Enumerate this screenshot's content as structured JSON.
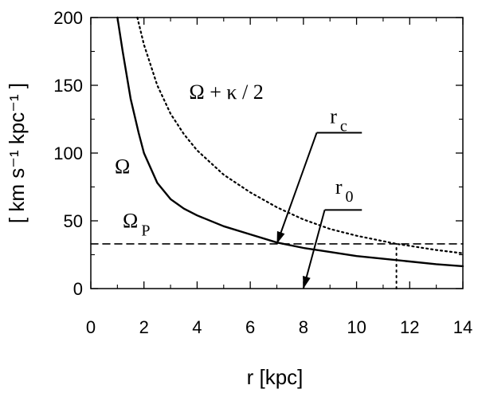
{
  "chart_data": {
    "type": "line",
    "xlabel": "r [kpc]",
    "ylabel": "[ km s⁻¹ kpc⁻¹ ]",
    "xlim": [
      0,
      14
    ],
    "ylim": [
      0,
      200
    ],
    "xticks": [
      "0",
      "2",
      "4",
      "6",
      "8",
      "10",
      "12",
      "14"
    ],
    "yticks": [
      "0",
      "50",
      "100",
      "150",
      "200"
    ],
    "grid": false,
    "legend": "none",
    "series": [
      {
        "name": "Ω",
        "style": "solid",
        "points": [
          [
            1.0,
            200
          ],
          [
            1.2,
            175
          ],
          [
            1.5,
            140
          ],
          [
            1.8,
            115
          ],
          [
            2.0,
            100
          ],
          [
            2.5,
            78
          ],
          [
            3.0,
            66
          ],
          [
            3.5,
            59
          ],
          [
            4.0,
            54
          ],
          [
            5.0,
            46
          ],
          [
            6.0,
            40
          ],
          [
            7.0,
            34
          ],
          [
            8.0,
            30
          ],
          [
            9.0,
            27
          ],
          [
            10.0,
            24
          ],
          [
            11.0,
            22
          ],
          [
            12.0,
            20
          ],
          [
            13.0,
            18
          ],
          [
            14.0,
            16.5
          ]
        ]
      },
      {
        "name": "Ω + κ / 2",
        "style": "dotted",
        "points": [
          [
            1.75,
            200
          ],
          [
            2.0,
            180
          ],
          [
            2.5,
            150
          ],
          [
            3.0,
            129
          ],
          [
            3.5,
            114
          ],
          [
            4.0,
            102
          ],
          [
            5.0,
            84
          ],
          [
            6.0,
            71
          ],
          [
            7.0,
            60
          ],
          [
            8.0,
            51
          ],
          [
            9.0,
            44
          ],
          [
            10.0,
            39
          ],
          [
            11.0,
            35
          ],
          [
            11.5,
            33
          ],
          [
            12.0,
            31.5
          ],
          [
            13.0,
            28.5
          ],
          [
            14.0,
            26
          ]
        ]
      },
      {
        "name": "Ω P",
        "style": "dashed",
        "points": [
          [
            0,
            33
          ],
          [
            14,
            33
          ]
        ]
      }
    ],
    "vertical_marker": {
      "x": 11.5,
      "y_from": 0,
      "y_to": 33,
      "style": "dotted"
    },
    "annotations": {
      "omega": {
        "text": "Ω",
        "x": 0.9,
        "y": 85
      },
      "omega_kappa": {
        "text": "Ω + κ / 2",
        "x": 3.7,
        "y": 140
      },
      "omega_p": {
        "text": "Ω",
        "sub": "P",
        "x": 1.2,
        "y": 45
      },
      "r_c": {
        "text": "r",
        "sub": "c",
        "label_x": 9.0,
        "label_y": 122,
        "elbow_x": 8.5,
        "elbow_end_x": 10.2,
        "elbow_y": 115,
        "arrow_tip_x": 7.0,
        "arrow_tip_y": 33
      },
      "r_0": {
        "text": "r",
        "sub": "0",
        "label_x": 9.2,
        "label_y": 70,
        "elbow_x": 8.8,
        "elbow_end_x": 10.2,
        "elbow_y": 58,
        "arrow_tip_x": 8.0,
        "arrow_tip_y": 0
      }
    }
  }
}
